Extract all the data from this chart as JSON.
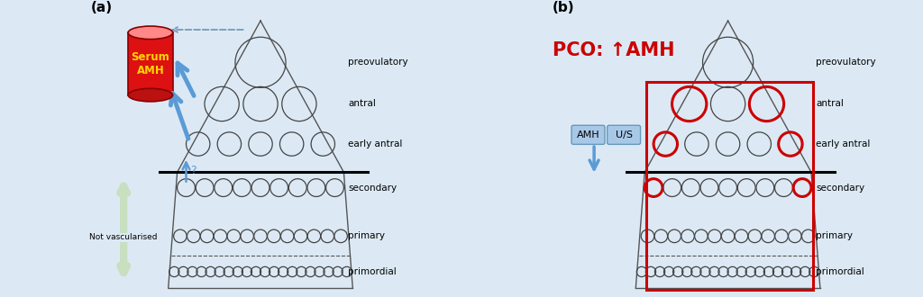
{
  "bg_color": "#dce9f5",
  "panel_a_label": "(a)",
  "panel_b_label": "(b)",
  "amh_text": "Serum\nAMH",
  "amh_text_color": "#ffd700",
  "not_vasc_text": "Not vascularised",
  "arrow_color": "#5b9bd5",
  "red_color": "#cc0000",
  "black_line_color": "#000000",
  "triangle_color": "#555555",
  "circle_color": "#444444",
  "highlight_circle_color": "#cc0000",
  "amh_box_b": "AMH",
  "us_box_b": "U/S",
  "cyl_face": "#dd1111",
  "cyl_top": "#ff8888",
  "cyl_edge": "#880000",
  "green_arrow": "#c8dfc0",
  "label_fontsize": 7.5
}
